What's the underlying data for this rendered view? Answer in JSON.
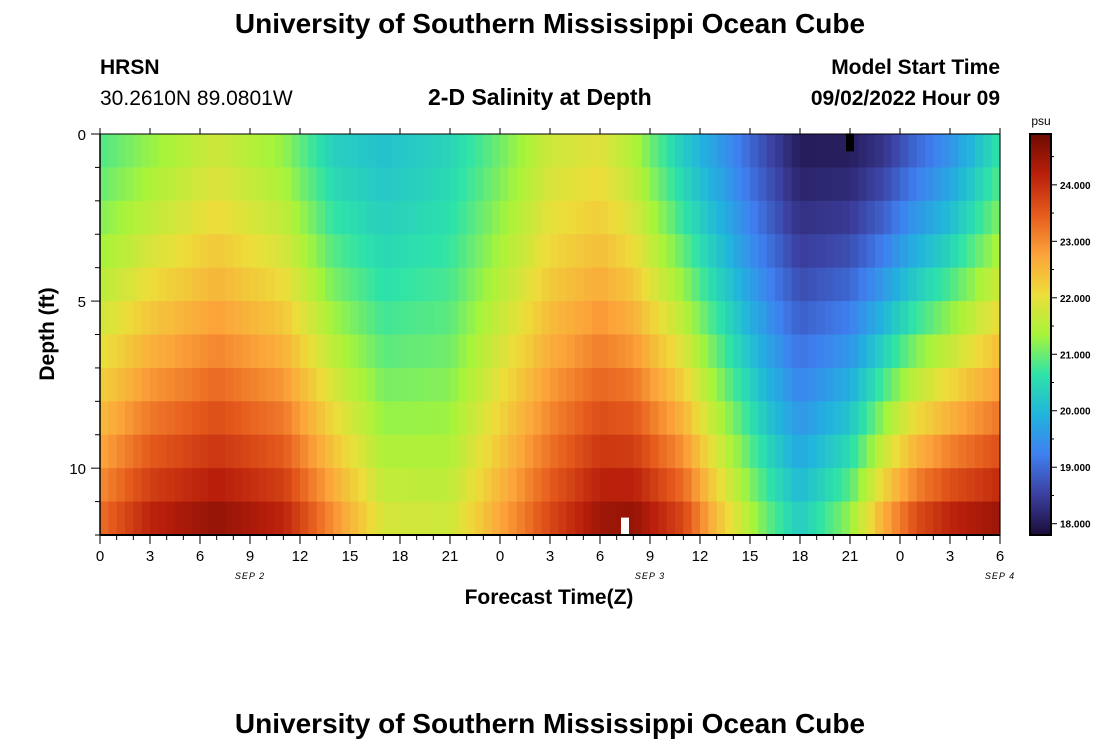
{
  "header": {
    "title": "University of Southern Mississippi Ocean Cube",
    "station": "HRSN",
    "location": "30.2610N  89.0801W",
    "model_start_label": "Model Start Time",
    "model_start_value": "09/02/2022 Hour 09",
    "footer_title": "University of Southern Mississippi Ocean Cube"
  },
  "chart_data": {
    "type": "heatmap",
    "title": "2-D Salinity at Depth",
    "xlabel": "Forecast Time(Z)",
    "ylabel": "Depth (ft)",
    "x_tick_labels": [
      "0",
      "3",
      "6",
      "9",
      "12",
      "15",
      "18",
      "21",
      "0",
      "3",
      "6",
      "9",
      "12",
      "15",
      "18",
      "21",
      "0",
      "3",
      "6"
    ],
    "date_labels": [
      {
        "label": "SEP 2",
        "hour": 9
      },
      {
        "label": "SEP 3",
        "hour": 33
      },
      {
        "label": "SEP 4",
        "hour": 54
      }
    ],
    "x_range_hours": [
      0,
      54
    ],
    "y_range_ft": [
      0,
      12
    ],
    "y_ticks": [
      0,
      5,
      10
    ],
    "depth_levels": 12,
    "colorbar": {
      "unit": "psu",
      "min": 17.8,
      "max": 24.9,
      "ticks": [
        "18.000",
        "19.000",
        "20.000",
        "21.000",
        "22.000",
        "23.000",
        "24.000"
      ],
      "colors": [
        "#1b0c3a",
        "#3b3f9e",
        "#3f7ff0",
        "#21b4dd",
        "#2ee3a8",
        "#a7f43a",
        "#eddd3a",
        "#fca33a",
        "#e55a1c",
        "#b91f0b",
        "#6e0a02"
      ]
    },
    "salinity_control": {
      "hours": [
        0,
        3,
        7,
        11,
        14,
        17,
        21,
        24,
        27,
        30,
        32,
        35,
        37,
        40,
        42,
        45,
        47,
        49,
        51,
        53,
        54
      ],
      "surface": [
        20.8,
        21.2,
        21.7,
        21.2,
        20.3,
        20.1,
        20.4,
        21.0,
        21.7,
        21.9,
        21.4,
        20.2,
        19.6,
        18.6,
        18.0,
        18.0,
        18.3,
        18.9,
        19.4,
        20.2,
        20.6
      ],
      "bottom": [
        23.4,
        24.3,
        24.7,
        24.3,
        23.1,
        21.9,
        21.8,
        22.8,
        23.8,
        24.6,
        24.7,
        23.9,
        22.6,
        21.1,
        20.4,
        21.4,
        22.9,
        23.9,
        24.4,
        24.6,
        24.7
      ],
      "depth_shape_exponent": 1.3
    },
    "marks": [
      {
        "name": "surface-min-marker",
        "hour": 45,
        "depth_ft": 0.25,
        "color": "#000000"
      },
      {
        "name": "bottom-max-marker",
        "hour": 31.5,
        "depth_ft": 11.75,
        "color": "#ffffff"
      }
    ]
  }
}
